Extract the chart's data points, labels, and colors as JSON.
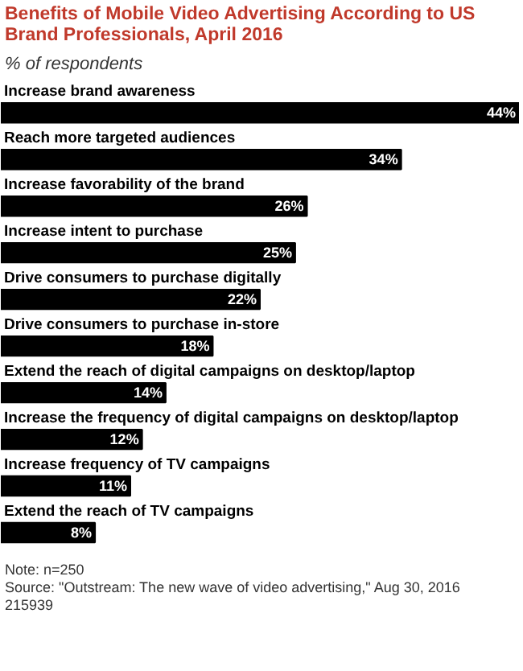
{
  "chart_data": {
    "type": "bar",
    "orientation": "horizontal",
    "title": "Benefits of Mobile Video Advertising According to US Brand Professionals, April 2016",
    "subtitle": "% of respondents",
    "categories": [
      "Increase brand awareness",
      "Reach more targeted audiences",
      "Increase favorability of the brand",
      "Increase intent to purchase",
      "Drive consumers to purchase digitally",
      "Drive consumers to purchase in-store",
      "Extend the reach of digital campaigns on desktop/laptop",
      "Increase the frequency of digital campaigns on desktop/laptop",
      "Increase frequency of TV campaigns",
      "Extend the reach of TV campaigns"
    ],
    "values": [
      44,
      34,
      26,
      25,
      22,
      18,
      14,
      12,
      11,
      8
    ],
    "value_labels": [
      "44%",
      "34%",
      "26%",
      "25%",
      "22%",
      "18%",
      "14%",
      "12%",
      "11%",
      "8%"
    ],
    "color": "#000000",
    "annotations": [
      "Note: n=250",
      "Source: \"Outstream: The new wave of video advertising,\" Aug 30, 2016",
      "215939"
    ]
  }
}
